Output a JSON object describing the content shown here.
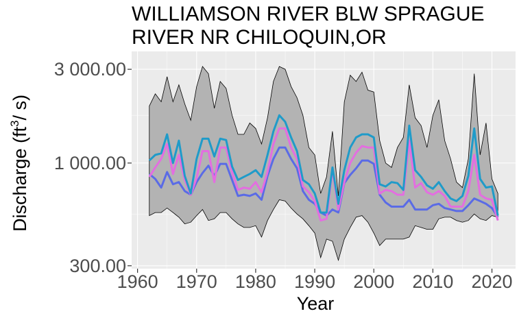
{
  "title_line1": "WILLIAMSON RIVER BLW SPRAGUE",
  "title_line2": "RIVER NR CHILOQUIN,OR",
  "chart_data": {
    "type": "line",
    "title": "WILLIAMSON RIVER BLW SPRAGUE RIVER NR CHILOQUIN,OR",
    "xlabel": "Year",
    "ylabel": "Discharge (ft3/s)",
    "ylabel_main": "Discharge (ft",
    "ylabel_sup": "3",
    "ylabel_end": "/ s)",
    "y_scale": "log",
    "xlim": [
      1959,
      2024
    ],
    "ylim": [
      290,
      3700
    ],
    "x_ticks": [
      1960,
      1970,
      1980,
      1990,
      2000,
      2010,
      2020
    ],
    "x_tick_labels": [
      "1960",
      "1970",
      "1980",
      "1990",
      "2000",
      "2010",
      "2020"
    ],
    "y_ticks": [
      300,
      1000,
      3000
    ],
    "y_tick_labels": [
      "300.00",
      "1 000.00",
      "3 000.00"
    ],
    "grid": true,
    "colors": {
      "panel": "#ebebeb",
      "grid": "#ffffff",
      "band_fill": "#b3b3b3",
      "band_line": "#000000",
      "mean": "#1f9bc9",
      "median": "#e36ee0",
      "low": "#5a6be6"
    },
    "x": [
      1962,
      1963,
      1964,
      1965,
      1966,
      1967,
      1968,
      1969,
      1970,
      1971,
      1972,
      1973,
      1974,
      1975,
      1976,
      1977,
      1978,
      1979,
      1980,
      1981,
      1982,
      1983,
      1984,
      1985,
      1986,
      1987,
      1988,
      1989,
      1990,
      1991,
      1992,
      1993,
      1994,
      1995,
      1996,
      1997,
      1998,
      1999,
      2000,
      2001,
      2002,
      2003,
      2004,
      2005,
      2006,
      2007,
      2008,
      2009,
      2010,
      2011,
      2012,
      2013,
      2014,
      2015,
      2016,
      2017,
      2018,
      2019,
      2020,
      2021
    ],
    "series": [
      {
        "role": "max",
        "values": [
          1950,
          2250,
          2050,
          2750,
          2050,
          2500,
          2000,
          1650,
          2450,
          3100,
          2850,
          1900,
          2600,
          2400,
          1750,
          1400,
          1400,
          1600,
          1500,
          1250,
          1700,
          2600,
          3100,
          3000,
          2450,
          2150,
          1750,
          1200,
          1100,
          700,
          850,
          1450,
          680,
          2050,
          2800,
          2600,
          2900,
          2350,
          2300,
          1300,
          1000,
          950,
          1200,
          1350,
          2500,
          1700,
          1550,
          1200,
          1750,
          2100,
          1300,
          1050,
          800,
          750,
          1050,
          2850,
          1100,
          1600,
          830,
          700
        ]
      },
      {
        "role": "min",
        "values": [
          540,
          560,
          560,
          590,
          560,
          530,
          490,
          500,
          540,
          580,
          510,
          520,
          560,
          560,
          520,
          490,
          470,
          470,
          480,
          420,
          510,
          580,
          650,
          640,
          590,
          550,
          520,
          480,
          440,
          330,
          410,
          400,
          320,
          410,
          470,
          530,
          540,
          500,
          440,
          380,
          410,
          410,
          410,
          410,
          420,
          480,
          470,
          460,
          460,
          520,
          530,
          530,
          510,
          500,
          510,
          550,
          520,
          510,
          540,
          530
        ]
      },
      {
        "role": "mean",
        "values": [
          1030,
          1100,
          1120,
          1400,
          1000,
          1300,
          860,
          700,
          1050,
          1330,
          1330,
          1080,
          1330,
          1310,
          960,
          820,
          850,
          880,
          920,
          850,
          1100,
          1450,
          1750,
          1620,
          1350,
          1150,
          820,
          780,
          700,
          560,
          560,
          950,
          620,
          920,
          1200,
          1350,
          1400,
          1400,
          1350,
          780,
          760,
          800,
          790,
          730,
          1550,
          920,
          850,
          770,
          740,
          800,
          720,
          660,
          640,
          680,
          860,
          1500,
          830,
          750,
          760,
          540
        ]
      },
      {
        "role": "median",
        "values": [
          850,
          950,
          1050,
          1250,
          880,
          1100,
          820,
          690,
          840,
          1150,
          1150,
          800,
          1200,
          1200,
          900,
          730,
          750,
          740,
          800,
          710,
          900,
          1250,
          1500,
          1500,
          1200,
          1050,
          760,
          710,
          640,
          510,
          520,
          930,
          580,
          800,
          1000,
          1130,
          1220,
          1200,
          1200,
          700,
          730,
          720,
          690,
          690,
          1300,
          750,
          790,
          710,
          690,
          720,
          680,
          600,
          600,
          600,
          720,
          1100,
          690,
          660,
          650,
          510
        ]
      },
      {
        "role": "low",
        "values": [
          880,
          830,
          750,
          900,
          780,
          800,
          720,
          690,
          800,
          890,
          970,
          860,
          990,
          990,
          820,
          680,
          690,
          680,
          700,
          650,
          860,
          1050,
          1200,
          1200,
          1050,
          940,
          720,
          650,
          620,
          560,
          540,
          580,
          560,
          790,
          870,
          940,
          1030,
          1030,
          990,
          690,
          630,
          600,
          600,
          600,
          650,
          580,
          580,
          580,
          610,
          620,
          590,
          580,
          570,
          570,
          610,
          660,
          640,
          620,
          590,
          530
        ]
      }
    ]
  }
}
